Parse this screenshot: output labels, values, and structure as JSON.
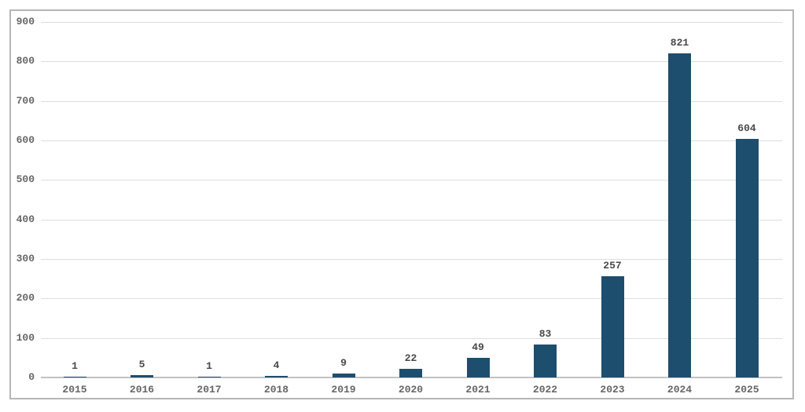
{
  "chart_data": {
    "type": "bar",
    "title": "",
    "xlabel": "",
    "ylabel": "",
    "categories": [
      "2015",
      "2016",
      "2017",
      "2018",
      "2019",
      "2020",
      "2021",
      "2022",
      "2023",
      "2024",
      "2025"
    ],
    "values": [
      1,
      5,
      1,
      4,
      9,
      22,
      49,
      83,
      257,
      821,
      604
    ],
    "ylim": [
      0,
      900
    ],
    "yticks": [
      0,
      100,
      200,
      300,
      400,
      500,
      600,
      700,
      800,
      900
    ],
    "grid": true,
    "legend": false,
    "value_labels_shown": true
  },
  "style": {
    "bar_color": "#1e4e6d",
    "grid_color": "#dddddd",
    "axis_line_color": "#c2c2c2",
    "frame_border_color": "#b6b6b6",
    "tick_label_color": "#666666",
    "value_label_color": "#494949",
    "background": "#ffffff"
  }
}
